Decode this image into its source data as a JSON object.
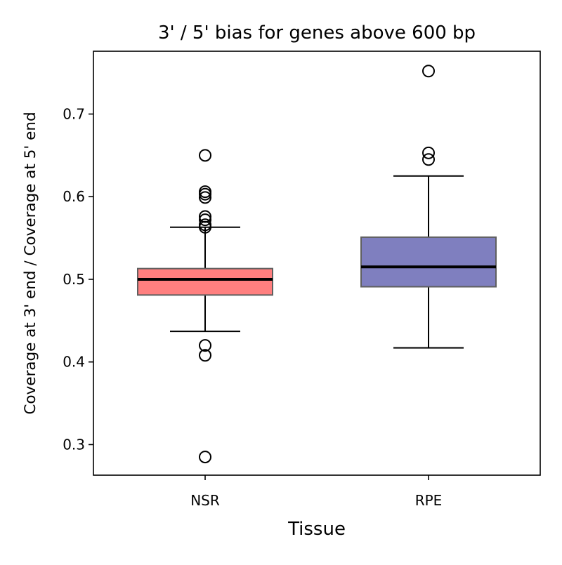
{
  "chart_data": {
    "type": "box",
    "title": "3' / 5' bias for genes above 600 bp",
    "xlabel": "Tissue",
    "ylabel": "Coverage at 3' end / Coverage at 5' end",
    "ylim": [
      0.263,
      0.776
    ],
    "yticks": [
      0.3,
      0.4,
      0.5,
      0.6,
      0.7
    ],
    "ytick_labels": [
      "0.3",
      "0.4",
      "0.5",
      "0.6",
      "0.7"
    ],
    "grid": false,
    "legend": false,
    "categories": [
      "NSR",
      "RPE"
    ],
    "boxes": [
      {
        "category": "NSR",
        "color": "#ff7f7f",
        "whisker_low": 0.437,
        "q1": 0.481,
        "median": 0.5,
        "q3": 0.513,
        "whisker_high": 0.563,
        "outliers": [
          0.65,
          0.606,
          0.603,
          0.599,
          0.576,
          0.572,
          0.566,
          0.563,
          0.42,
          0.408,
          0.285
        ]
      },
      {
        "category": "RPE",
        "color": "#7f7fbf",
        "whisker_low": 0.417,
        "q1": 0.491,
        "median": 0.515,
        "q3": 0.551,
        "whisker_high": 0.625,
        "outliers": [
          0.752,
          0.653,
          0.645
        ]
      }
    ]
  }
}
